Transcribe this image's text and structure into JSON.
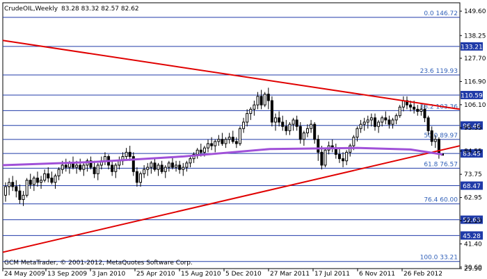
{
  "header": {
    "symbol": "CrudeOIL,Weekly",
    "ohlc": "83.28 83.32 82.57 82.62"
  },
  "footer": {
    "copyright": "GCM MetaTrader, © 2001-2012, MetaQuotes Software Corp."
  },
  "colors": {
    "background": "#ffffff",
    "candle": "#000000",
    "level_line": "#1f3aa8",
    "fib_text": "#2f5fb8",
    "trendline": "#e00000",
    "moving_average": "#a050d8",
    "badge_bg": "#1f3aa8",
    "badge_text": "#ffffff"
  },
  "chart_data": {
    "type": "candlestick",
    "title": "CrudeOIL,Weekly",
    "ylim": [
      29.9,
      153.5
    ],
    "y_ticks": [
      "149.60",
      "138.25",
      "127.70",
      "116.90",
      "106.10",
      "95.35",
      "84.55",
      "73.75",
      "62.95",
      "52.20",
      "41.40",
      "30.60",
      "29.90"
    ],
    "x_ticks": [
      "24 May 2009",
      "13 Sep 2009",
      "3 Jan 2010",
      "25 Apr 2010",
      "15 Aug 2010",
      "5 Dec 2010",
      "27 Mar 2011",
      "17 Jul 2011",
      "6 Nov 2011",
      "26 Feb 2012"
    ],
    "price_badges": [
      "133.21",
      "110.59",
      "96.46",
      "83.45",
      "68.47",
      "52.63",
      "45.28"
    ],
    "fib_levels": [
      {
        "label": "0.0 146.72",
        "price": 146.72
      },
      {
        "label": "23.6 119.93",
        "price": 119.93
      },
      {
        "label": "38.2 103.36",
        "price": 103.36
      },
      {
        "label": "50.0 89.97",
        "price": 89.97
      },
      {
        "label": "61.8 76.57",
        "price": 76.57
      },
      {
        "label": "76.4 60.00",
        "price": 60.0
      },
      {
        "label": "100.0 33.21",
        "price": 33.21
      }
    ],
    "trendlines": [
      {
        "name": "resistance",
        "from": {
          "x": "24 May 2009",
          "y": 136.0
        },
        "to": {
          "x": "after 26 Feb 2012",
          "y": 104.0
        }
      },
      {
        "name": "support",
        "from": {
          "x": "24 May 2009",
          "y": 37.5
        },
        "to": {
          "x": "after 26 Feb 2012",
          "y": 87.0
        }
      }
    ],
    "moving_average": [
      {
        "x": "24 May 2009",
        "y": 78.0
      },
      {
        "x": "3 Jan 2010",
        "y": 79.5
      },
      {
        "x": "15 Aug 2010",
        "y": 82.0
      },
      {
        "x": "27 Mar 2011",
        "y": 85.5
      },
      {
        "x": "6 Nov 2011",
        "y": 86.0
      },
      {
        "x": "26 Feb 2012",
        "y": 85.3
      },
      {
        "x": "end",
        "y": 83.0
      }
    ],
    "candles": [
      {
        "o": 64.0,
        "h": 70.0,
        "l": 61.0,
        "c": 68.0
      },
      {
        "o": 68.0,
        "h": 72.0,
        "l": 64.0,
        "c": 70.0
      },
      {
        "o": 70.0,
        "h": 73.0,
        "l": 66.0,
        "c": 68.0
      },
      {
        "o": 68.0,
        "h": 71.0,
        "l": 63.0,
        "c": 66.0
      },
      {
        "o": 66.0,
        "h": 69.0,
        "l": 60.0,
        "c": 62.0
      },
      {
        "o": 62.0,
        "h": 66.0,
        "l": 59.0,
        "c": 64.0
      },
      {
        "o": 64.0,
        "h": 72.0,
        "l": 63.0,
        "c": 71.0
      },
      {
        "o": 71.0,
        "h": 74.0,
        "l": 67.0,
        "c": 69.0
      },
      {
        "o": 69.0,
        "h": 73.0,
        "l": 66.0,
        "c": 72.0
      },
      {
        "o": 72.0,
        "h": 75.0,
        "l": 68.0,
        "c": 70.0
      },
      {
        "o": 70.0,
        "h": 73.0,
        "l": 67.0,
        "c": 71.0
      },
      {
        "o": 71.0,
        "h": 76.0,
        "l": 70.0,
        "c": 74.0
      },
      {
        "o": 74.0,
        "h": 77.0,
        "l": 70.0,
        "c": 72.0
      },
      {
        "o": 72.0,
        "h": 75.0,
        "l": 69.0,
        "c": 70.0
      },
      {
        "o": 70.0,
        "h": 74.0,
        "l": 67.0,
        "c": 73.0
      },
      {
        "o": 73.0,
        "h": 77.0,
        "l": 71.0,
        "c": 76.0
      },
      {
        "o": 76.0,
        "h": 80.0,
        "l": 74.0,
        "c": 78.0
      },
      {
        "o": 78.0,
        "h": 81.0,
        "l": 75.0,
        "c": 77.0
      },
      {
        "o": 77.0,
        "h": 80.0,
        "l": 74.0,
        "c": 79.0
      },
      {
        "o": 79.0,
        "h": 82.0,
        "l": 76.0,
        "c": 77.0
      },
      {
        "o": 77.0,
        "h": 80.0,
        "l": 74.0,
        "c": 78.0
      },
      {
        "o": 78.0,
        "h": 81.0,
        "l": 75.0,
        "c": 76.0
      },
      {
        "o": 76.0,
        "h": 79.0,
        "l": 73.0,
        "c": 78.0
      },
      {
        "o": 78.0,
        "h": 81.0,
        "l": 75.0,
        "c": 80.0
      },
      {
        "o": 80.0,
        "h": 82.0,
        "l": 76.0,
        "c": 77.0
      },
      {
        "o": 77.0,
        "h": 80.0,
        "l": 72.0,
        "c": 74.0
      },
      {
        "o": 74.0,
        "h": 79.0,
        "l": 71.0,
        "c": 78.0
      },
      {
        "o": 78.0,
        "h": 82.0,
        "l": 76.0,
        "c": 80.0
      },
      {
        "o": 80.0,
        "h": 84.0,
        "l": 78.0,
        "c": 82.0
      },
      {
        "o": 82.0,
        "h": 83.0,
        "l": 76.0,
        "c": 78.0
      },
      {
        "o": 78.0,
        "h": 80.0,
        "l": 73.0,
        "c": 75.0
      },
      {
        "o": 75.0,
        "h": 79.0,
        "l": 72.0,
        "c": 78.0
      },
      {
        "o": 78.0,
        "h": 82.0,
        "l": 76.0,
        "c": 80.0
      },
      {
        "o": 80.0,
        "h": 84.0,
        "l": 78.0,
        "c": 82.0
      },
      {
        "o": 82.0,
        "h": 86.0,
        "l": 80.0,
        "c": 84.0
      },
      {
        "o": 84.0,
        "h": 87.0,
        "l": 80.0,
        "c": 82.0
      },
      {
        "o": 82.0,
        "h": 84.0,
        "l": 73.0,
        "c": 75.0
      },
      {
        "o": 75.0,
        "h": 77.0,
        "l": 68.0,
        "c": 70.0
      },
      {
        "o": 70.0,
        "h": 75.0,
        "l": 68.0,
        "c": 74.0
      },
      {
        "o": 74.0,
        "h": 78.0,
        "l": 72.0,
        "c": 76.0
      },
      {
        "o": 76.0,
        "h": 79.0,
        "l": 73.0,
        "c": 77.0
      },
      {
        "o": 77.0,
        "h": 80.0,
        "l": 74.0,
        "c": 79.0
      },
      {
        "o": 79.0,
        "h": 81.0,
        "l": 75.0,
        "c": 76.0
      },
      {
        "o": 76.0,
        "h": 79.0,
        "l": 73.0,
        "c": 78.0
      },
      {
        "o": 78.0,
        "h": 80.0,
        "l": 74.0,
        "c": 75.0
      },
      {
        "o": 75.0,
        "h": 78.0,
        "l": 72.0,
        "c": 77.0
      },
      {
        "o": 77.0,
        "h": 80.0,
        "l": 75.0,
        "c": 79.0
      },
      {
        "o": 79.0,
        "h": 82.0,
        "l": 76.0,
        "c": 77.0
      },
      {
        "o": 77.0,
        "h": 80.0,
        "l": 75.0,
        "c": 78.0
      },
      {
        "o": 78.0,
        "h": 80.0,
        "l": 74.0,
        "c": 76.0
      },
      {
        "o": 76.0,
        "h": 79.0,
        "l": 73.0,
        "c": 77.0
      },
      {
        "o": 77.0,
        "h": 80.0,
        "l": 75.0,
        "c": 79.0
      },
      {
        "o": 79.0,
        "h": 82.0,
        "l": 77.0,
        "c": 81.0
      },
      {
        "o": 81.0,
        "h": 84.0,
        "l": 79.0,
        "c": 83.0
      },
      {
        "o": 83.0,
        "h": 86.0,
        "l": 81.0,
        "c": 85.0
      },
      {
        "o": 85.0,
        "h": 88.0,
        "l": 82.0,
        "c": 84.0
      },
      {
        "o": 84.0,
        "h": 87.0,
        "l": 82.0,
        "c": 86.0
      },
      {
        "o": 86.0,
        "h": 90.0,
        "l": 84.0,
        "c": 88.0
      },
      {
        "o": 88.0,
        "h": 91.0,
        "l": 85.0,
        "c": 87.0
      },
      {
        "o": 87.0,
        "h": 90.0,
        "l": 84.0,
        "c": 89.0
      },
      {
        "o": 89.0,
        "h": 92.0,
        "l": 87.0,
        "c": 90.0
      },
      {
        "o": 90.0,
        "h": 93.0,
        "l": 87.0,
        "c": 88.0
      },
      {
        "o": 88.0,
        "h": 91.0,
        "l": 86.0,
        "c": 90.0
      },
      {
        "o": 90.0,
        "h": 93.0,
        "l": 88.0,
        "c": 91.0
      },
      {
        "o": 91.0,
        "h": 94.0,
        "l": 88.0,
        "c": 89.0
      },
      {
        "o": 89.0,
        "h": 91.0,
        "l": 86.0,
        "c": 88.0
      },
      {
        "o": 88.0,
        "h": 96.0,
        "l": 87.0,
        "c": 95.0
      },
      {
        "o": 95.0,
        "h": 100.0,
        "l": 93.0,
        "c": 98.0
      },
      {
        "o": 98.0,
        "h": 104.0,
        "l": 96.0,
        "c": 102.0
      },
      {
        "o": 102.0,
        "h": 105.0,
        "l": 99.0,
        "c": 104.0
      },
      {
        "o": 104.0,
        "h": 108.0,
        "l": 101.0,
        "c": 106.0
      },
      {
        "o": 106.0,
        "h": 112.0,
        "l": 104.0,
        "c": 110.0
      },
      {
        "o": 110.0,
        "h": 113.0,
        "l": 104.0,
        "c": 106.0
      },
      {
        "o": 106.0,
        "h": 112.0,
        "l": 105.0,
        "c": 111.0
      },
      {
        "o": 111.0,
        "h": 114.0,
        "l": 104.0,
        "c": 108.0
      },
      {
        "o": 108.0,
        "h": 110.0,
        "l": 96.0,
        "c": 98.0
      },
      {
        "o": 98.0,
        "h": 102.0,
        "l": 94.0,
        "c": 100.0
      },
      {
        "o": 100.0,
        "h": 103.0,
        "l": 96.0,
        "c": 98.0
      },
      {
        "o": 98.0,
        "h": 101.0,
        "l": 94.0,
        "c": 96.0
      },
      {
        "o": 96.0,
        "h": 99.0,
        "l": 92.0,
        "c": 94.0
      },
      {
        "o": 94.0,
        "h": 98.0,
        "l": 92.0,
        "c": 97.0
      },
      {
        "o": 97.0,
        "h": 100.0,
        "l": 94.0,
        "c": 99.0
      },
      {
        "o": 99.0,
        "h": 101.0,
        "l": 94.0,
        "c": 96.0
      },
      {
        "o": 96.0,
        "h": 98.0,
        "l": 88.0,
        "c": 90.0
      },
      {
        "o": 90.0,
        "h": 94.0,
        "l": 87.0,
        "c": 93.0
      },
      {
        "o": 93.0,
        "h": 97.0,
        "l": 91.0,
        "c": 95.0
      },
      {
        "o": 95.0,
        "h": 99.0,
        "l": 93.0,
        "c": 97.0
      },
      {
        "o": 97.0,
        "h": 98.0,
        "l": 88.0,
        "c": 90.0
      },
      {
        "o": 90.0,
        "h": 92.0,
        "l": 80.0,
        "c": 84.0
      },
      {
        "o": 84.0,
        "h": 87.0,
        "l": 76.0,
        "c": 78.0
      },
      {
        "o": 78.0,
        "h": 86.0,
        "l": 77.0,
        "c": 85.0
      },
      {
        "o": 85.0,
        "h": 89.0,
        "l": 83.0,
        "c": 87.0
      },
      {
        "o": 87.0,
        "h": 90.0,
        "l": 84.0,
        "c": 86.0
      },
      {
        "o": 86.0,
        "h": 88.0,
        "l": 81.0,
        "c": 83.0
      },
      {
        "o": 83.0,
        "h": 86.0,
        "l": 79.0,
        "c": 81.0
      },
      {
        "o": 81.0,
        "h": 84.0,
        "l": 77.0,
        "c": 80.0
      },
      {
        "o": 80.0,
        "h": 85.0,
        "l": 78.0,
        "c": 84.0
      },
      {
        "o": 84.0,
        "h": 88.0,
        "l": 82.0,
        "c": 87.0
      },
      {
        "o": 87.0,
        "h": 92.0,
        "l": 85.0,
        "c": 91.0
      },
      {
        "o": 91.0,
        "h": 96.0,
        "l": 89.0,
        "c": 95.0
      },
      {
        "o": 95.0,
        "h": 99.0,
        "l": 93.0,
        "c": 97.0
      },
      {
        "o": 97.0,
        "h": 100.0,
        "l": 94.0,
        "c": 98.0
      },
      {
        "o": 98.0,
        "h": 101.0,
        "l": 95.0,
        "c": 99.0
      },
      {
        "o": 99.0,
        "h": 102.0,
        "l": 96.0,
        "c": 100.0
      },
      {
        "o": 100.0,
        "h": 102.0,
        "l": 94.0,
        "c": 96.0
      },
      {
        "o": 96.0,
        "h": 99.0,
        "l": 93.0,
        "c": 98.0
      },
      {
        "o": 98.0,
        "h": 101.0,
        "l": 96.0,
        "c": 100.0
      },
      {
        "o": 100.0,
        "h": 103.0,
        "l": 97.0,
        "c": 99.0
      },
      {
        "o": 99.0,
        "h": 101.0,
        "l": 95.0,
        "c": 97.0
      },
      {
        "o": 97.0,
        "h": 100.0,
        "l": 95.0,
        "c": 99.0
      },
      {
        "o": 99.0,
        "h": 102.0,
        "l": 97.0,
        "c": 101.0
      },
      {
        "o": 101.0,
        "h": 106.0,
        "l": 100.0,
        "c": 105.0
      },
      {
        "o": 105.0,
        "h": 110.0,
        "l": 103.0,
        "c": 108.0
      },
      {
        "o": 108.0,
        "h": 110.0,
        "l": 104.0,
        "c": 106.0
      },
      {
        "o": 106.0,
        "h": 108.0,
        "l": 103.0,
        "c": 105.0
      },
      {
        "o": 105.0,
        "h": 108.0,
        "l": 102.0,
        "c": 104.0
      },
      {
        "o": 104.0,
        "h": 106.0,
        "l": 101.0,
        "c": 103.0
      },
      {
        "o": 103.0,
        "h": 106.0,
        "l": 101.0,
        "c": 104.0
      },
      {
        "o": 104.0,
        "h": 106.0,
        "l": 98.0,
        "c": 100.0
      },
      {
        "o": 100.0,
        "h": 101.0,
        "l": 92.0,
        "c": 94.0
      },
      {
        "o": 94.0,
        "h": 96.0,
        "l": 87.0,
        "c": 89.0
      },
      {
        "o": 89.0,
        "h": 92.0,
        "l": 86.0,
        "c": 90.0
      },
      {
        "o": 90.0,
        "h": 91.0,
        "l": 81.0,
        "c": 83.0
      },
      {
        "o": 83.28,
        "h": 83.32,
        "l": 82.57,
        "c": 82.62
      }
    ]
  }
}
